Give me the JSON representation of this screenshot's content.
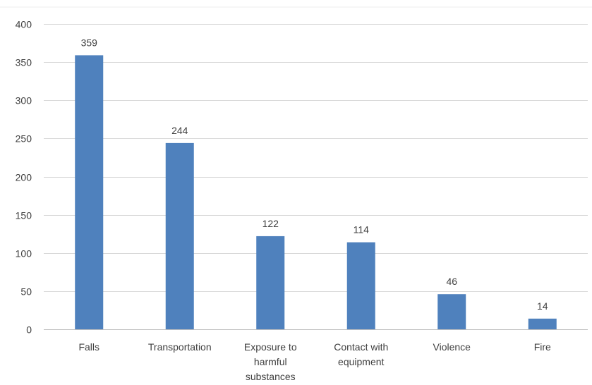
{
  "chart_data": {
    "type": "bar",
    "title": "",
    "xlabel": "",
    "ylabel": "",
    "categories": [
      [
        "Falls"
      ],
      [
        "Transportation"
      ],
      [
        "Exposure to",
        "harmful",
        "substances"
      ],
      [
        "Contact with",
        "equipment"
      ],
      [
        "Violence"
      ],
      [
        "Fire"
      ]
    ],
    "values": [
      359,
      244,
      122,
      114,
      46,
      14
    ],
    "ylim": [
      0,
      400
    ],
    "yticks": [
      0,
      50,
      100,
      150,
      200,
      250,
      300,
      350,
      400
    ],
    "grid": true,
    "legend": "none",
    "colors": {
      "bar": "#4f81bd",
      "grid": "#d9d9d9",
      "text": "#404040"
    }
  }
}
